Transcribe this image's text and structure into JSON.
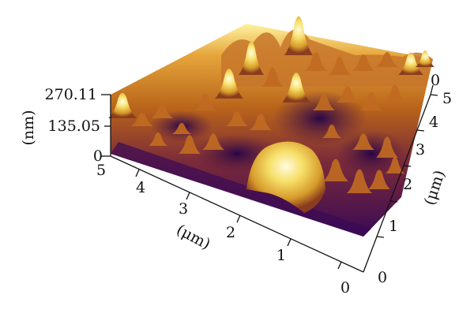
{
  "z_axis": {
    "unit": "(nm)",
    "ticks": [
      "270.11",
      "135.05",
      "0"
    ]
  },
  "x_axis": {
    "unit": "(μm)",
    "ticks": [
      "5",
      "4",
      "3",
      "2",
      "1",
      "0"
    ]
  },
  "y_axis": {
    "unit": "(μm)",
    "ticks": [
      "0",
      "1",
      "2",
      "3",
      "4",
      "5"
    ]
  },
  "top_corner_tick": "0",
  "colors": {
    "low": "#3a0a55",
    "mid": "#b8631a",
    "high": "#ffee70"
  }
}
